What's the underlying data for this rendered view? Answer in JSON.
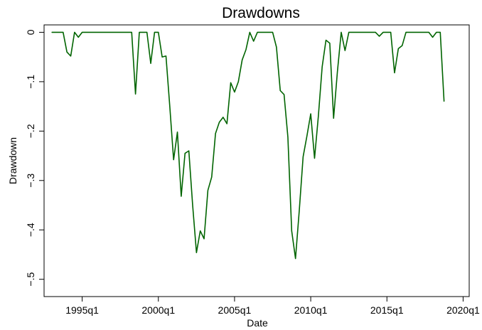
{
  "chart_data": {
    "type": "line",
    "title": "Drawdowns",
    "xlabel": "Date",
    "ylabel": "Drawdown",
    "xlim": [
      1992.5,
      2020.4
    ],
    "ylim": [
      -0.535,
      0.015
    ],
    "x_ticks": [
      {
        "value": 1995,
        "label": "1995q1"
      },
      {
        "value": 2000,
        "label": "2000q1"
      },
      {
        "value": 2005,
        "label": "2005q1"
      },
      {
        "value": 2010,
        "label": "2010q1"
      },
      {
        "value": 2015,
        "label": "2015q1"
      },
      {
        "value": 2020,
        "label": "2020q1"
      }
    ],
    "y_ticks": [
      {
        "value": 0,
        "label": "0"
      },
      {
        "value": -0.1,
        "label": "−.1"
      },
      {
        "value": -0.2,
        "label": "−.2"
      },
      {
        "value": -0.3,
        "label": "−.3"
      },
      {
        "value": -0.4,
        "label": "−.4"
      },
      {
        "value": -0.5,
        "label": "−.5"
      }
    ],
    "grid": false,
    "legend": "none",
    "series": [
      {
        "color": "#006400",
        "points": [
          [
            1993.0,
            0
          ],
          [
            1993.25,
            0
          ],
          [
            1993.5,
            0
          ],
          [
            1993.75,
            0
          ],
          [
            1994.0,
            -0.04
          ],
          [
            1994.25,
            -0.048
          ],
          [
            1994.5,
            0
          ],
          [
            1994.75,
            -0.01
          ],
          [
            1995.0,
            0
          ],
          [
            1995.25,
            0
          ],
          [
            1995.5,
            0
          ],
          [
            1995.75,
            0
          ],
          [
            1996.0,
            0
          ],
          [
            1996.25,
            0
          ],
          [
            1996.5,
            0
          ],
          [
            1996.75,
            0
          ],
          [
            1997.0,
            0
          ],
          [
            1997.25,
            0
          ],
          [
            1997.5,
            0
          ],
          [
            1997.75,
            0
          ],
          [
            1998.0,
            0
          ],
          [
            1998.25,
            0
          ],
          [
            1998.5,
            -0.125
          ],
          [
            1998.75,
            0
          ],
          [
            1999.0,
            0
          ],
          [
            1999.25,
            0
          ],
          [
            1999.5,
            -0.063
          ],
          [
            1999.75,
            0
          ],
          [
            2000.0,
            0
          ],
          [
            2000.25,
            -0.05
          ],
          [
            2000.5,
            -0.048
          ],
          [
            2000.75,
            -0.15
          ],
          [
            2001.0,
            -0.258
          ],
          [
            2001.25,
            -0.202
          ],
          [
            2001.5,
            -0.332
          ],
          [
            2001.75,
            -0.245
          ],
          [
            2002.0,
            -0.24
          ],
          [
            2002.25,
            -0.35
          ],
          [
            2002.5,
            -0.446
          ],
          [
            2002.75,
            -0.402
          ],
          [
            2003.0,
            -0.418
          ],
          [
            2003.25,
            -0.32
          ],
          [
            2003.5,
            -0.293
          ],
          [
            2003.75,
            -0.205
          ],
          [
            2004.0,
            -0.182
          ],
          [
            2004.25,
            -0.172
          ],
          [
            2004.5,
            -0.185
          ],
          [
            2004.75,
            -0.102
          ],
          [
            2005.0,
            -0.121
          ],
          [
            2005.25,
            -0.1
          ],
          [
            2005.5,
            -0.056
          ],
          [
            2005.75,
            -0.035
          ],
          [
            2006.0,
            0
          ],
          [
            2006.25,
            -0.018
          ],
          [
            2006.5,
            0
          ],
          [
            2006.75,
            0
          ],
          [
            2007.0,
            0
          ],
          [
            2007.25,
            0
          ],
          [
            2007.5,
            0
          ],
          [
            2007.75,
            -0.03
          ],
          [
            2008.0,
            -0.118
          ],
          [
            2008.25,
            -0.126
          ],
          [
            2008.5,
            -0.212
          ],
          [
            2008.75,
            -0.402
          ],
          [
            2009.0,
            -0.458
          ],
          [
            2009.25,
            -0.36
          ],
          [
            2009.5,
            -0.252
          ],
          [
            2009.75,
            -0.21
          ],
          [
            2010.0,
            -0.165
          ],
          [
            2010.25,
            -0.255
          ],
          [
            2010.5,
            -0.17
          ],
          [
            2010.75,
            -0.07
          ],
          [
            2011.0,
            -0.016
          ],
          [
            2011.25,
            -0.022
          ],
          [
            2011.5,
            -0.174
          ],
          [
            2011.75,
            -0.08
          ],
          [
            2012.0,
            0
          ],
          [
            2012.25,
            -0.037
          ],
          [
            2012.5,
            0
          ],
          [
            2012.75,
            0
          ],
          [
            2013.0,
            0
          ],
          [
            2013.25,
            0
          ],
          [
            2013.5,
            0
          ],
          [
            2013.75,
            0
          ],
          [
            2014.0,
            0
          ],
          [
            2014.25,
            0
          ],
          [
            2014.5,
            -0.008
          ],
          [
            2014.75,
            0
          ],
          [
            2015.0,
            0
          ],
          [
            2015.25,
            0
          ],
          [
            2015.5,
            -0.082
          ],
          [
            2015.75,
            -0.033
          ],
          [
            2016.0,
            -0.027
          ],
          [
            2016.25,
            0
          ],
          [
            2016.5,
            0
          ],
          [
            2016.75,
            0
          ],
          [
            2017.0,
            0
          ],
          [
            2017.25,
            0
          ],
          [
            2017.5,
            0
          ],
          [
            2017.75,
            0
          ],
          [
            2018.0,
            -0.01
          ],
          [
            2018.25,
            0
          ],
          [
            2018.5,
            0
          ],
          [
            2018.75,
            -0.14
          ]
        ]
      }
    ]
  }
}
